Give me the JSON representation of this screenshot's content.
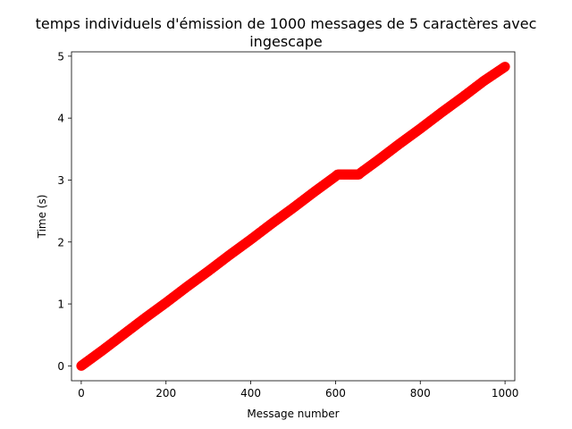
{
  "chart_data": {
    "type": "scatter",
    "title_line1": "temps individuels d'émission de 1000 messages de 5 caractères avec",
    "title_line2": "ingescape",
    "xlabel": "Message number",
    "ylabel": "Time (s)",
    "xlim": [
      -23,
      1023
    ],
    "ylim": [
      -0.24,
      5.07
    ],
    "xticks": [
      0,
      200,
      400,
      600,
      800,
      1000
    ],
    "yticks": [
      0,
      1,
      2,
      3,
      4,
      5
    ],
    "xtick_labels": [
      "0",
      "200",
      "400",
      "600",
      "800",
      "1000"
    ],
    "ytick_labels": [
      "0",
      "1",
      "2",
      "3",
      "4",
      "5"
    ],
    "grid": false,
    "marker_color": "#ff0000",
    "series": [
      {
        "x": [
          0,
          50,
          100,
          150,
          200,
          250,
          300,
          350,
          400,
          450,
          500,
          550,
          600,
          605,
          620,
          640,
          655,
          660,
          700,
          750,
          800,
          850,
          900,
          950,
          1000
        ],
        "y": [
          0.0,
          0.25,
          0.51,
          0.77,
          1.02,
          1.28,
          1.53,
          1.79,
          2.04,
          2.3,
          2.55,
          2.81,
          3.06,
          3.09,
          3.09,
          3.09,
          3.09,
          3.12,
          3.32,
          3.58,
          3.83,
          4.09,
          4.34,
          4.6,
          4.83
        ]
      }
    ]
  }
}
